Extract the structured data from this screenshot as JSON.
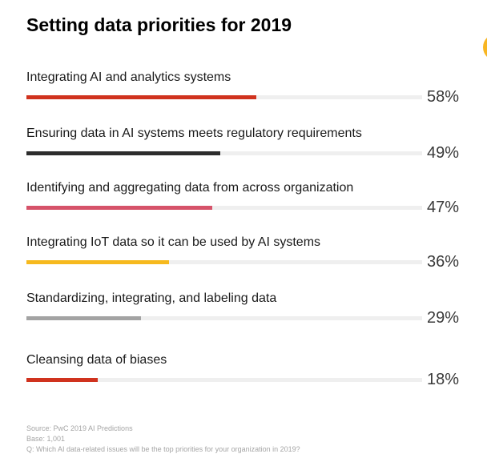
{
  "chart_data": {
    "type": "bar",
    "orientation": "horizontal",
    "title": "Setting data priorities for 2019",
    "categories": [
      "Integrating AI and analytics systems",
      "Ensuring data in AI systems meets regulatory requirements",
      "Identifying and aggregating data from across organization",
      "Integrating IoT data so it can be used by AI systems",
      "Standardizing, integrating, and labeling data",
      "Cleansing data of biases"
    ],
    "values": [
      58,
      49,
      47,
      36,
      29,
      18
    ],
    "value_labels": [
      "58%",
      "49%",
      "47%",
      "36%",
      "29%",
      "18%"
    ],
    "colors": [
      "#d0321e",
      "#2d2d2d",
      "#d6536a",
      "#f6b91e",
      "#a3a3a3",
      "#d0321e"
    ],
    "xlim": [
      0,
      100
    ],
    "grid": false,
    "legend": "none"
  },
  "accent_color": "#f8b623",
  "footer": {
    "source": "Source: PwC 2019 AI Predictions",
    "base": "Base: 1,001",
    "question": "Q: Which AI data-related issues will be the top priorities for your organization in 2019?"
  }
}
